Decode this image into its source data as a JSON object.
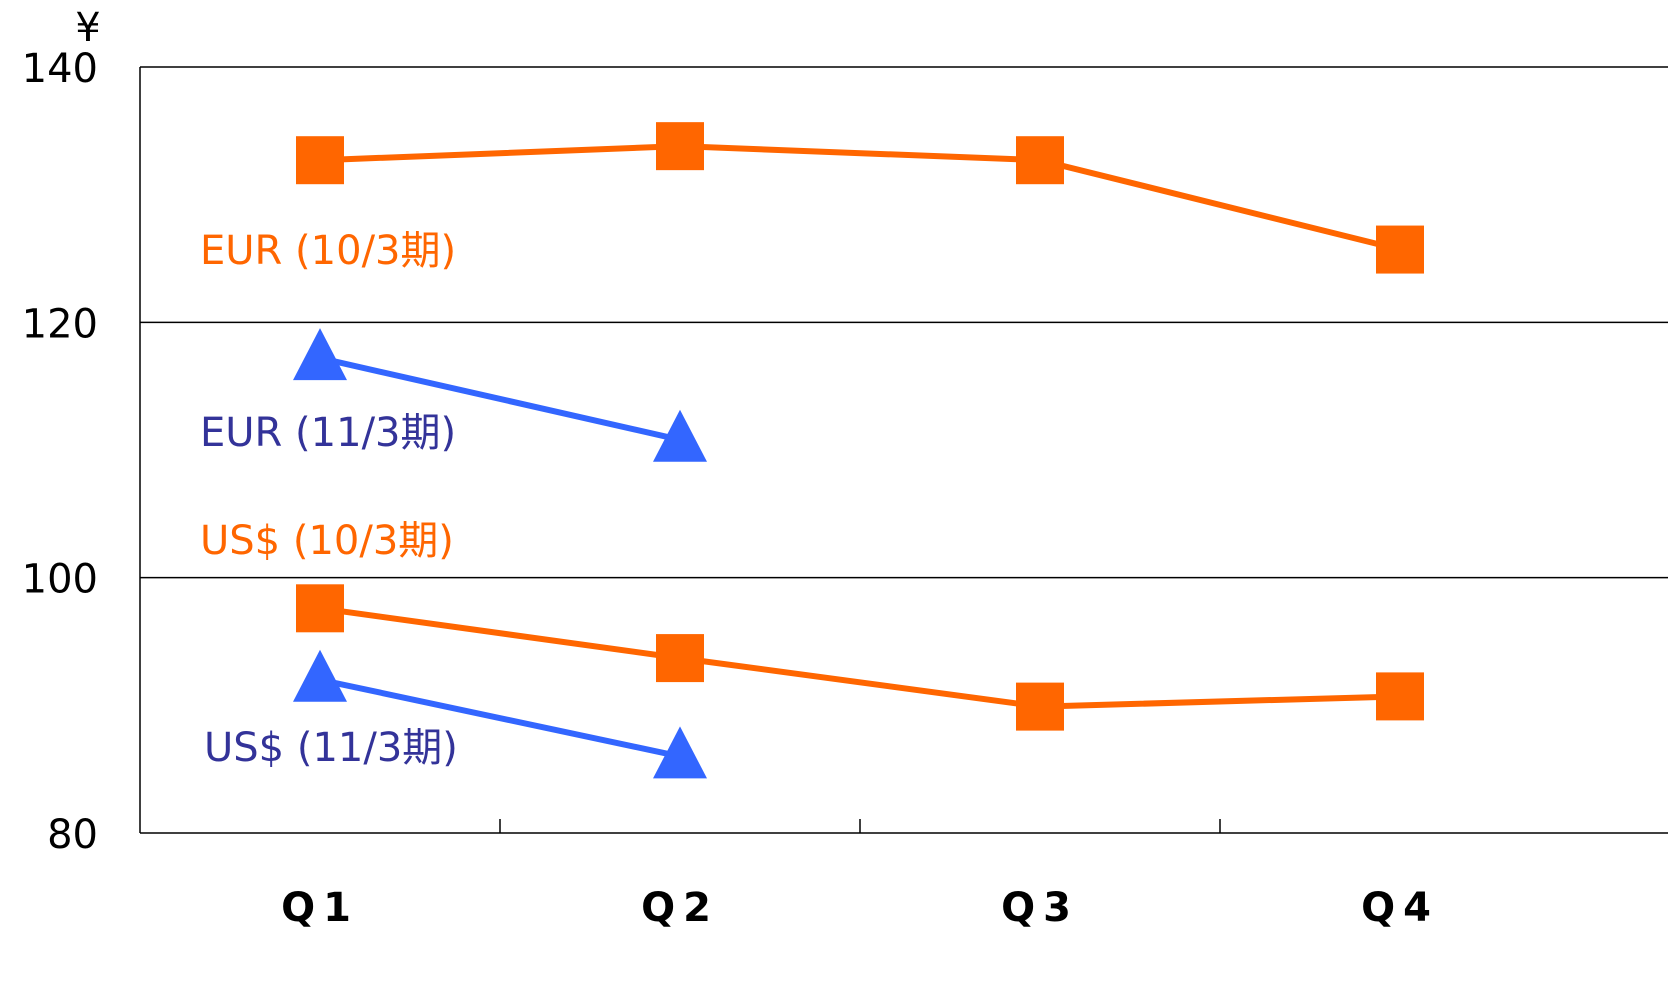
{
  "chart_data": {
    "type": "line",
    "y_unit": "¥",
    "categories": [
      "Q1",
      "Q2",
      "Q3",
      "Q4"
    ],
    "series": [
      {
        "name": "EUR (10/3期)",
        "color": "#ff6600",
        "label_color": "#ff6600",
        "marker": "square",
        "values": [
          132.7,
          133.8,
          132.7,
          125.7
        ]
      },
      {
        "name": "EUR (11/3期)",
        "color": "#3366ff",
        "label_color": "#333399",
        "marker": "triangle",
        "values": [
          117.2,
          110.8,
          null,
          null
        ]
      },
      {
        "name": "US$ (10/3期)",
        "color": "#ff6600",
        "label_color": "#ff6600",
        "marker": "square",
        "values": [
          97.6,
          93.7,
          89.9,
          90.7
        ]
      },
      {
        "name": "US$ (11/3期)",
        "color": "#3366ff",
        "label_color": "#333399",
        "marker": "triangle",
        "values": [
          92.0,
          86.0,
          null,
          null
        ]
      }
    ],
    "ylim": [
      80,
      140
    ],
    "yticks": [
      80,
      100,
      120,
      140
    ],
    "grid": true
  }
}
